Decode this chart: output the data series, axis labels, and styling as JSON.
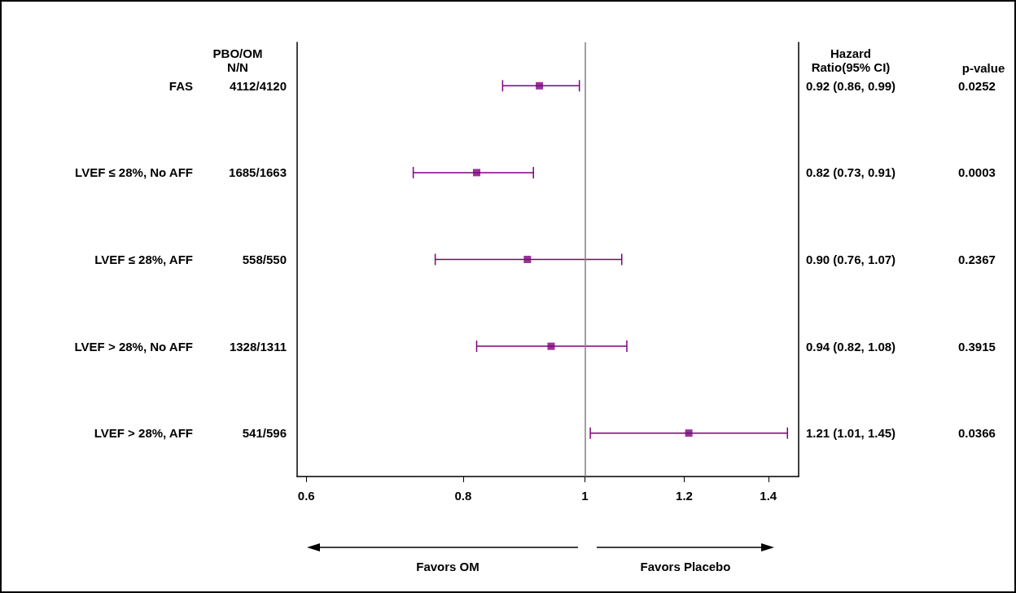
{
  "chart_data": {
    "type": "scatter",
    "orientation": "horizontal",
    "log": "x",
    "categories": [
      "FAS",
      "LVEF ≤ 28%, No AFF",
      "LVEF ≤ 28%, AFF",
      "LVEF > 28%, No AFF",
      "LVEF > 28%, AFF"
    ],
    "series": [
      {
        "color": "#800080",
        "values": [
          0.92,
          0.82,
          0.9,
          0.94,
          1.21
        ],
        "errors": [
          [
            0.86,
            0.99
          ],
          [
            0.73,
            0.91
          ],
          [
            0.76,
            1.07
          ],
          [
            0.82,
            1.08
          ],
          [
            1.01,
            1.45
          ]
        ],
        "value_labels": [
          "0.92 (0.86, 0.99)",
          "0.82 (0.73, 0.91)",
          "0.90 (0.76, 1.07)",
          "0.94 (0.82, 1.08)",
          "1.21 (1.01, 1.45)"
        ]
      }
    ],
    "xlim": [
      0.59,
      1.48
    ],
    "xticks": [
      0.6,
      0.8,
      1,
      1.2,
      1.4
    ],
    "ref_lines": [
      {
        "axis": "x",
        "value": 1,
        "color": "#808080"
      }
    ],
    "marker": "square",
    "grid": false,
    "annotations": [
      "PBO/OM\nN/N",
      "Hazard\nRatio(95% CI)",
      "p-value",
      "Favors OM",
      "Favors Placebo",
      "4112/4120",
      "1685/1663",
      "558/550",
      "1328/1311",
      "541/596",
      "0.0252",
      "0.0003",
      "0.2367",
      "0.3915",
      "0.0366"
    ]
  }
}
